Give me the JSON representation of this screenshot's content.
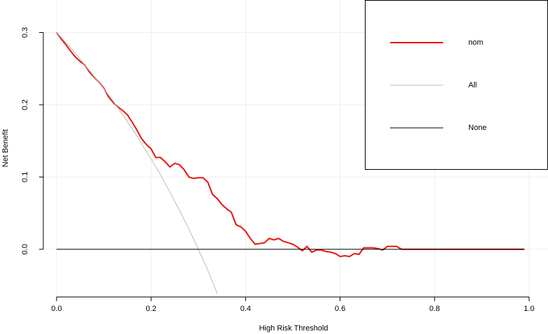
{
  "chart_data": {
    "type": "line",
    "xlabel": "High Risk Threshold",
    "ylabel": "Net Benefit",
    "xlim": [
      -0.028,
      1.04
    ],
    "ylim": [
      -0.066,
      0.345
    ],
    "xticks": [
      {
        "value": 0,
        "label": "0.0"
      },
      {
        "value": 0.2,
        "label": "0.2"
      },
      {
        "value": 0.4,
        "label": "0.4"
      },
      {
        "value": 0.6,
        "label": "0.6"
      },
      {
        "value": 0.8,
        "label": "0.8"
      },
      {
        "value": 1,
        "label": "1.0"
      }
    ],
    "yticks": [
      {
        "value": 0,
        "label": "0.0"
      },
      0.1,
      0.2,
      0.3
    ],
    "grid": true,
    "legend": "upper right",
    "series": [
      {
        "name": "nom",
        "color": "#e8140c",
        "x": [
          0,
          0.01,
          0.02,
          0.03,
          0.04,
          0.05,
          0.06,
          0.07,
          0.08,
          0.09,
          0.1,
          0.11,
          0.12,
          0.13,
          0.14,
          0.15,
          0.16,
          0.17,
          0.18,
          0.19,
          0.2,
          0.21,
          0.22,
          0.23,
          0.24,
          0.25,
          0.26,
          0.27,
          0.28,
          0.29,
          0.3,
          0.31,
          0.32,
          0.33,
          0.34,
          0.35,
          0.36,
          0.37,
          0.38,
          0.39,
          0.4,
          0.41,
          0.42,
          0.43,
          0.44,
          0.45,
          0.46,
          0.47,
          0.48,
          0.49,
          0.5,
          0.51,
          0.52,
          0.53,
          0.54,
          0.55,
          0.56,
          0.57,
          0.58,
          0.59,
          0.6,
          0.61,
          0.62,
          0.63,
          0.64,
          0.65,
          0.66,
          0.67,
          0.68,
          0.69,
          0.7,
          0.71,
          0.72,
          0.73,
          0.99
        ],
        "values": [
          0.3,
          0.291,
          0.283,
          0.274,
          0.266,
          0.26,
          0.255,
          0.245,
          0.238,
          0.231,
          0.223,
          0.211,
          0.203,
          0.197,
          0.192,
          0.186,
          0.176,
          0.165,
          0.153,
          0.145,
          0.139,
          0.127,
          0.127,
          0.121,
          0.114,
          0.119,
          0.117,
          0.11,
          0.1,
          0.098,
          0.099,
          0.099,
          0.093,
          0.076,
          0.07,
          0.062,
          0.056,
          0.051,
          0.034,
          0.031,
          0.025,
          0.015,
          0.007,
          0.008,
          0.009,
          0.015,
          0.013,
          0.015,
          0.011,
          0.009,
          0.007,
          0.003,
          -0.002,
          0.004,
          -0.004,
          -0.001,
          -0.001,
          -0.003,
          -0.004,
          -0.006,
          -0.01,
          -0.009,
          -0.01,
          -0.006,
          -0.007,
          0.002,
          0.002,
          0.002,
          0.001,
          -0.001,
          0.004,
          0.004,
          0.004,
          0,
          0
        ]
      },
      {
        "name": "All",
        "color": "#bbbbbb",
        "x": [
          0,
          0.02,
          0.04,
          0.06,
          0.08,
          0.1,
          0.12,
          0.14,
          0.16,
          0.18,
          0.2,
          0.22,
          0.24,
          0.26,
          0.28,
          0.3,
          0.32,
          0.34
        ],
        "values": [
          0.3,
          0.286,
          0.271,
          0.255,
          0.239,
          0.222,
          0.205,
          0.186,
          0.167,
          0.146,
          0.125,
          0.103,
          0.079,
          0.054,
          0.028,
          0,
          -0.029,
          -0.061
        ]
      },
      {
        "name": "None",
        "color": "#000000",
        "x": [
          0,
          0.99
        ],
        "values": [
          0,
          0
        ]
      }
    ]
  }
}
